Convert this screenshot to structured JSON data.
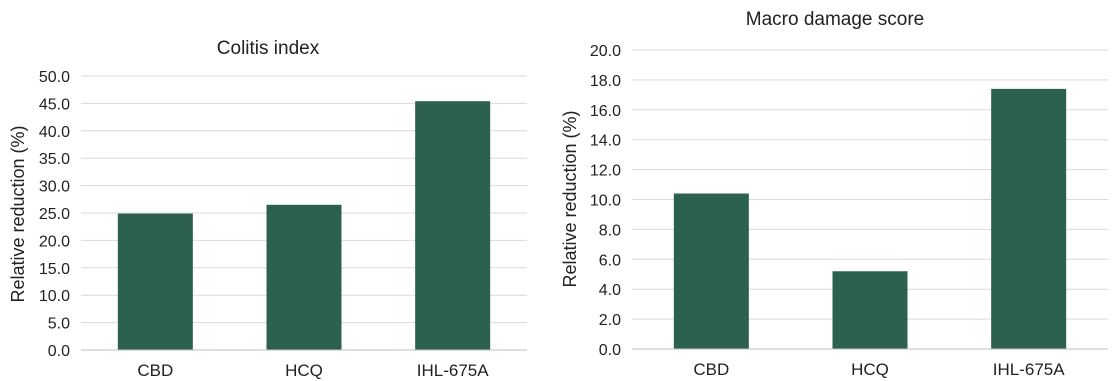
{
  "chart_data": [
    {
      "type": "bar",
      "title": "Colitis index",
      "ylabel": "Relative reduction (%)",
      "xlabel": "",
      "categories": [
        "CBD",
        "HCQ",
        "IHL-675A"
      ],
      "values": [
        24.9,
        26.5,
        45.4
      ],
      "ylim": [
        0,
        50
      ],
      "yticks": [
        "0.0",
        "5.0",
        "10.0",
        "15.0",
        "20.0",
        "25.0",
        "30.0",
        "35.0",
        "40.0",
        "45.0",
        "50.0"
      ],
      "grid": true,
      "legend": "none",
      "bar_color": "#2b614e"
    },
    {
      "type": "bar",
      "title": "Macro damage score",
      "ylabel": "Relative reduction (%)",
      "xlabel": "",
      "categories": [
        "CBD",
        "HCQ",
        "IHL-675A"
      ],
      "values": [
        10.4,
        5.2,
        17.4
      ],
      "ylim": [
        0,
        20
      ],
      "yticks": [
        "0.0",
        "2.0",
        "4.0",
        "6.0",
        "8.0",
        "10.0",
        "12.0",
        "14.0",
        "16.0",
        "18.0",
        "20.0"
      ],
      "grid": true,
      "legend": "none",
      "bar_color": "#2b614e"
    }
  ]
}
